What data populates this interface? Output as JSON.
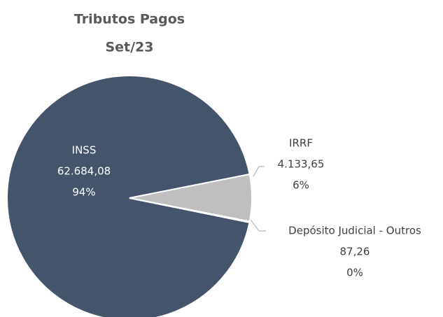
{
  "chart_data": {
    "type": "pie",
    "title": "Tributos Pagos",
    "subtitle": "Set/23",
    "categories": [
      "INSS",
      "IRRF",
      "Depósito Judicial - Outros"
    ],
    "values": [
      62684.08,
      4133.65,
      87.26
    ],
    "value_labels": [
      "62.684,08",
      "4.133,65",
      "87,26"
    ],
    "percent_labels": [
      "94%",
      "6%",
      "0%"
    ],
    "colors": [
      "#44546a",
      "#bfbfbf",
      "#a5a5a5"
    ]
  }
}
